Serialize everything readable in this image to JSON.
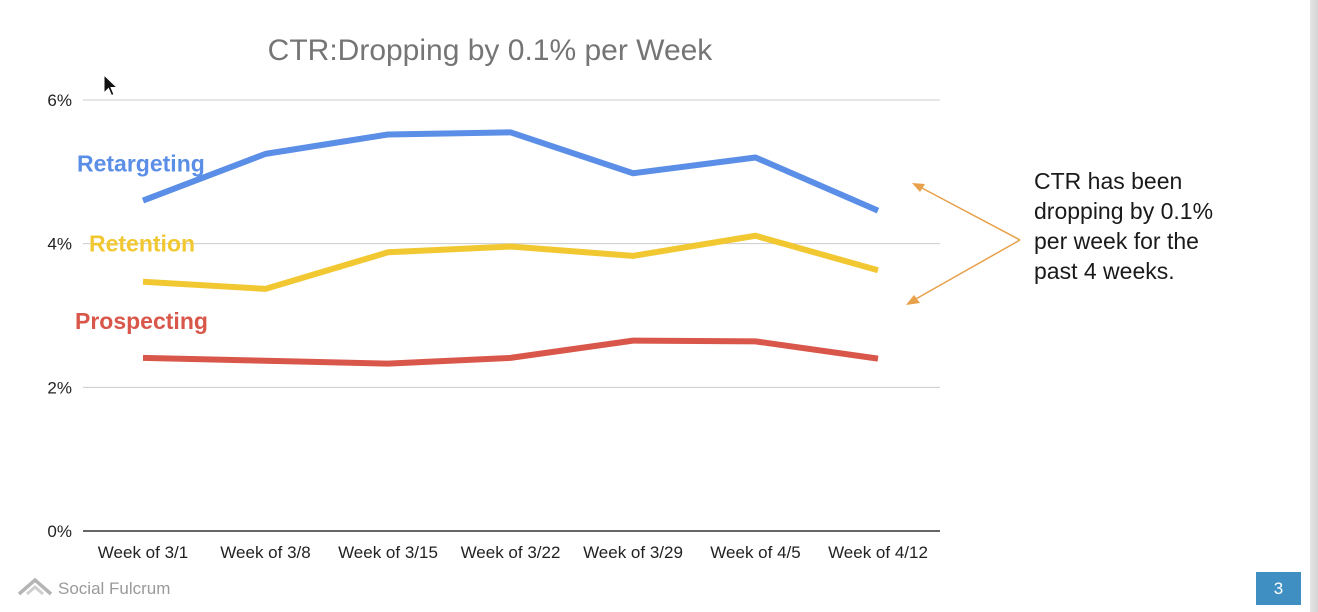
{
  "chart_data": {
    "type": "line",
    "title": "CTR:Dropping by 0.1% per Week",
    "categories": [
      "Week of 3/1",
      "Week of 3/8",
      "Week of 3/15",
      "Week of 3/22",
      "Week of 3/29",
      "Week of 4/5",
      "Week of 4/12"
    ],
    "yticks": [
      "0%",
      "2%",
      "4%",
      "6%"
    ],
    "ylim": [
      0,
      6
    ],
    "xlabel": "",
    "ylabel": "",
    "grid": true,
    "series": [
      {
        "name": "Retargeting",
        "color": "#5b8ee6",
        "values": [
          4.6,
          5.25,
          5.52,
          5.55,
          4.98,
          5.2,
          4.46
        ]
      },
      {
        "name": "Retention",
        "color": "#f2c832",
        "values": [
          3.47,
          3.37,
          3.88,
          3.96,
          3.83,
          4.11,
          3.63
        ]
      },
      {
        "name": "Prospecting",
        "color": "#d9574a",
        "values": [
          2.41,
          2.37,
          2.33,
          2.41,
          2.65,
          2.64,
          2.4
        ]
      }
    ],
    "annotation": "CTR has been dropping by 0.1% per week for the past 4 weeks."
  },
  "annotation_lines": [
    "CTR has been",
    "dropping by 0.1%",
    "per week for the",
    "past 4 weeks."
  ],
  "footer": {
    "brand": "Social Fulcrum",
    "page_number": "3"
  },
  "colors": {
    "annotation_arrow": "#e8a04a",
    "page_badge": "#3f8fc3"
  }
}
